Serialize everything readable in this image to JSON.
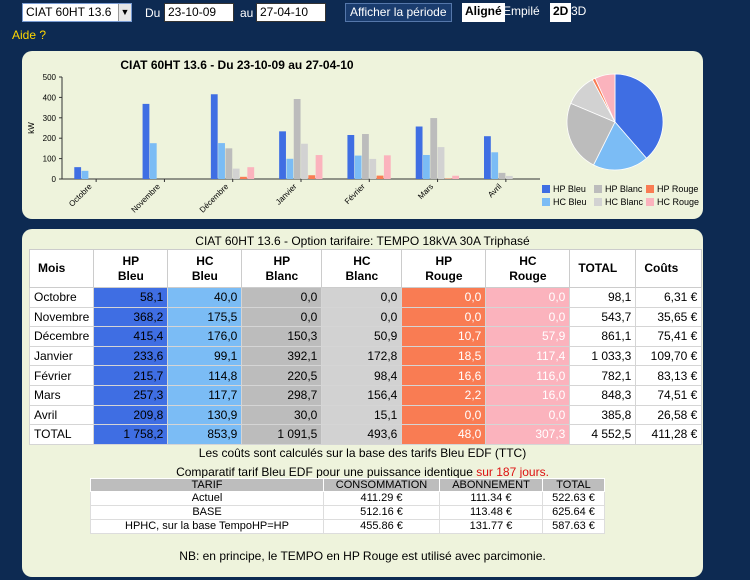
{
  "toolbar": {
    "device": "CIAT 60HT 13.6",
    "du_label": "Du",
    "start": "23-10-09",
    "au_label": "au",
    "end": "27-04-10",
    "show": "Afficher la période",
    "mode_on": "Aligné",
    "mode_off": "Empilé",
    "view_on": "2D",
    "view_off": "3D"
  },
  "help": "Aide ?",
  "colors": {
    "hp_bleu": "#3f6ee3",
    "hc_bleu": "#7bbcf5",
    "hp_blanc": "#bcbcbc",
    "hc_blanc": "#d2d2d2",
    "hp_rouge": "#f97c53",
    "hc_rouge": "#fbb3bd"
  },
  "chart_data": [
    {
      "type": "bar",
      "title": "CIAT 60HT 13.6 - Du 23-10-09 au 27-04-10",
      "ylabel": "kW",
      "ylim": [
        0,
        500
      ],
      "yticks": [
        0,
        100,
        200,
        300,
        400,
        500
      ],
      "grid": false,
      "categories": [
        "Octobre",
        "Novembre",
        "Décembre",
        "Janvier",
        "Février",
        "Mars",
        "Avril"
      ],
      "series": [
        {
          "name": "HP Bleu",
          "values": [
            58.1,
            368.2,
            415.4,
            233.6,
            215.7,
            257.3,
            209.8
          ]
        },
        {
          "name": "HC Bleu",
          "values": [
            40.0,
            175.5,
            176.0,
            99.1,
            114.8,
            117.7,
            130.9
          ]
        },
        {
          "name": "HP Blanc",
          "values": [
            0.0,
            0.0,
            150.3,
            392.1,
            220.5,
            298.7,
            30.0
          ]
        },
        {
          "name": "HC Blanc",
          "values": [
            0.0,
            0.0,
            50.9,
            172.8,
            98.4,
            156.4,
            15.1
          ]
        },
        {
          "name": "HP Rouge",
          "values": [
            0.0,
            0.0,
            10.7,
            18.5,
            16.6,
            2.2,
            0.0
          ]
        },
        {
          "name": "HC Rouge",
          "values": [
            0.0,
            0.0,
            57.9,
            117.4,
            116.0,
            16.0,
            0.0
          ]
        }
      ]
    },
    {
      "type": "pie",
      "labels": [
        "HP Bleu",
        "HC Bleu",
        "HP Blanc",
        "HC Blanc",
        "HP Rouge",
        "HC Rouge"
      ],
      "values": [
        1758.2,
        853.9,
        1091.5,
        493.6,
        48.0,
        307.3
      ]
    }
  ],
  "legend": [
    "HP Bleu",
    "HP Blanc",
    "HP Rouge",
    "HC Bleu",
    "HC Blanc",
    "HC Rouge"
  ],
  "table": {
    "title": "CIAT 60HT 13.6 - Option tarifaire: TEMPO 18kVA 30A Triphasé",
    "headers": [
      "Mois",
      "HP Bleu",
      "HC Bleu",
      "HP Blanc",
      "HC Blanc",
      "HP Rouge",
      "HC Rouge",
      "TOTAL",
      "Coûts"
    ],
    "rows": [
      [
        "Octobre",
        "58,1",
        "40,0",
        "0,0",
        "0,0",
        "0,0",
        "0,0",
        "98,1",
        "6,31 €"
      ],
      [
        "Novembre",
        "368,2",
        "175,5",
        "0,0",
        "0,0",
        "0,0",
        "0,0",
        "543,7",
        "35,65 €"
      ],
      [
        "Décembre",
        "415,4",
        "176,0",
        "150,3",
        "50,9",
        "10,7",
        "57,9",
        "861,1",
        "75,41 €"
      ],
      [
        "Janvier",
        "233,6",
        "99,1",
        "392,1",
        "172,8",
        "18,5",
        "117,4",
        "1 033,3",
        "109,70 €"
      ],
      [
        "Février",
        "215,7",
        "114,8",
        "220,5",
        "98,4",
        "16,6",
        "116,0",
        "782,1",
        "83,13 €"
      ],
      [
        "Mars",
        "257,3",
        "117,7",
        "298,7",
        "156,4",
        "2,2",
        "16,0",
        "848,3",
        "74,51 €"
      ],
      [
        "Avril",
        "209,8",
        "130,9",
        "30,0",
        "15,1",
        "0,0",
        "0,0",
        "385,8",
        "26,58 €"
      ],
      [
        "TOTAL",
        "1 758,2",
        "853,9",
        "1 091,5",
        "493,6",
        "48,0",
        "307,3",
        "4 552,5",
        "411,28 €"
      ]
    ]
  },
  "note_costs": "Les coûts sont calculés sur la base des tarifs Bleu EDF (TTC)",
  "compare": {
    "text": "Comparatif tarif Bleu EDF pour une puissance identique ",
    "highlight": "sur 187 jours.",
    "headers": [
      "TARIF",
      "CONSOMMATION",
      "ABONNEMENT",
      "TOTAL"
    ],
    "rows": [
      [
        "Actuel",
        "411.29 €",
        "111.34 €",
        "522.63 €"
      ],
      [
        "BASE",
        "512.16 €",
        "113.48 €",
        "625.64 €"
      ],
      [
        "HPHC, sur la base TempoHP=HP",
        "455.86 €",
        "131.77 €",
        "587.63 €"
      ]
    ]
  },
  "note_tempo": "NB: en principe, le TEMPO en HP Rouge est utilisé avec parcimonie."
}
